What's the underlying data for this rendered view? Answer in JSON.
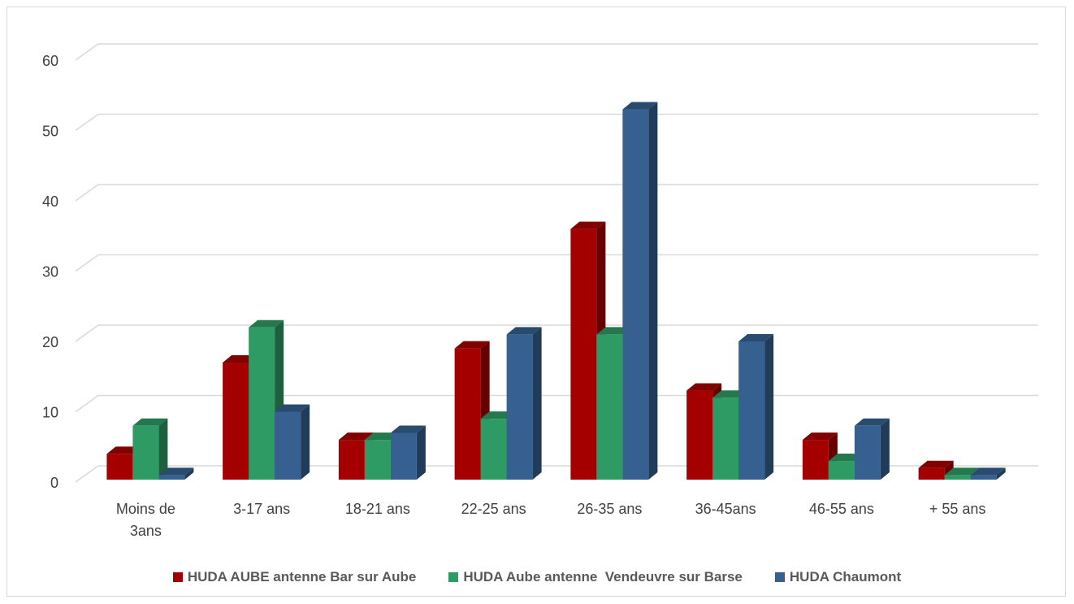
{
  "chart_data": {
    "type": "bar",
    "title": "",
    "xlabel": "",
    "ylabel": "",
    "ylim": [
      0,
      60
    ],
    "yticks": [
      0,
      10,
      20,
      30,
      40,
      50,
      60
    ],
    "grid": true,
    "legend_position": "bottom",
    "categories": [
      "Moins de 3ans",
      "3-17 ans",
      "18-21 ans",
      "22-25 ans",
      "26-35 ans",
      "36-45ans",
      "46-55 ans",
      "+ 55 ans"
    ],
    "category_lines": [
      [
        "Moins de",
        "3ans"
      ],
      [
        "3-17 ans"
      ],
      [
        "18-21 ans"
      ],
      [
        "22-25 ans"
      ],
      [
        "26-35 ans"
      ],
      [
        "36-45ans"
      ],
      [
        "46-55 ans"
      ],
      [
        "+ 55 ans"
      ]
    ],
    "series": [
      {
        "name": "HUDA AUBE antenne Bar sur Aube",
        "color": "#a50000",
        "values": [
          4,
          17,
          6,
          19,
          36,
          13,
          6,
          2
        ]
      },
      {
        "name": "HUDA Aube antenne  Vendeuvre sur Barse",
        "color": "#2e9a64",
        "values": [
          8,
          22,
          6,
          9,
          21,
          12,
          3,
          1
        ]
      },
      {
        "name": "HUDA Chaumont",
        "color": "#35608f",
        "values": [
          1,
          10,
          7,
          21,
          53,
          20,
          8,
          1
        ]
      }
    ]
  }
}
